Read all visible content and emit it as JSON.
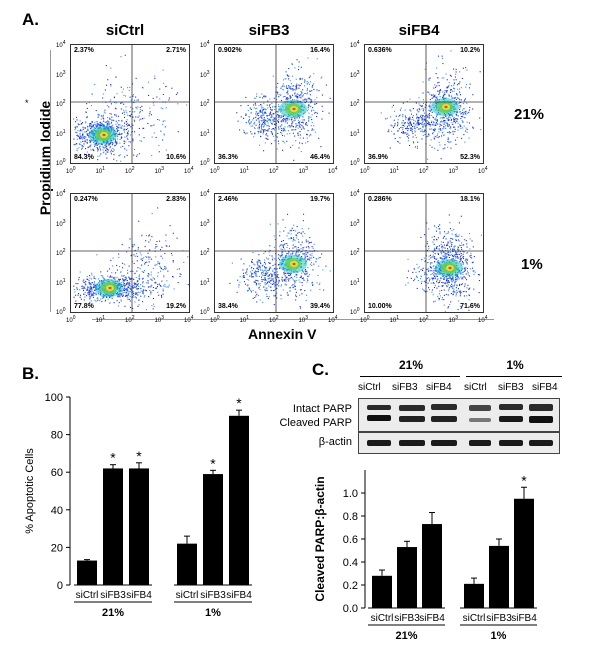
{
  "panel_a": {
    "letter": "A.",
    "conditions": [
      "siCtrl",
      "siFB3",
      "siFB4"
    ],
    "oxygen_rows": [
      "21%",
      "1%"
    ],
    "y_axis_title": "Propidium Iodide",
    "x_axis_title": "Annexin V",
    "tick_labels": [
      "10",
      "10",
      "10",
      "10",
      "10"
    ],
    "tick_exponents": [
      "0",
      "1",
      "2",
      "3",
      "4"
    ],
    "stray_mark": "*",
    "plots": [
      {
        "row": "21%",
        "condition": "siCtrl",
        "ul": "2.37%",
        "ur": "2.71%",
        "ll": "84.3%",
        "lr": "10.6%"
      },
      {
        "row": "21%",
        "condition": "siFB3",
        "ul": "0.902%",
        "ur": "16.4%",
        "ll": "36.3%",
        "lr": "46.4%"
      },
      {
        "row": "21%",
        "condition": "siFB4",
        "ul": "0.636%",
        "ur": "10.2%",
        "ll": "36.9%",
        "lr": "52.3%"
      },
      {
        "row": "1%",
        "condition": "siCtrl",
        "ul": "0.247%",
        "ur": "2.83%",
        "ll": "77.8%",
        "lr": "19.2%"
      },
      {
        "row": "1%",
        "condition": "siFB3",
        "ul": "2.46%",
        "ur": "19.7%",
        "ll": "38.4%",
        "lr": "39.4%"
      },
      {
        "row": "1%",
        "condition": "siFB4",
        "ul": "0.286%",
        "ur": "18.1%",
        "ll": "10.00%",
        "lr": "71.6%"
      }
    ]
  },
  "panel_c_blot": {
    "letter": "C.",
    "groups": [
      "21%",
      "1%"
    ],
    "lanes": [
      "siCtrl",
      "siFB3",
      "siFB4",
      "siCtrl",
      "siFB3",
      "siFB4"
    ],
    "rows": [
      "Intact PARP",
      "Cleaved PARP",
      "β-actin"
    ]
  },
  "chart_data": [
    {
      "panel": "B.",
      "type": "bar",
      "title": "",
      "xlabel": "",
      "ylabel": "% Apoptotic Cells",
      "ylim": [
        0,
        100
      ],
      "yticks": [
        "0",
        "20",
        "40",
        "60",
        "80",
        "100"
      ],
      "categories": [
        "siCtrl",
        "siFB3",
        "siFB4",
        "siCtrl",
        "siFB3",
        "siFB4"
      ],
      "groups": [
        "21%",
        "1%"
      ],
      "values": [
        13,
        62,
        62,
        22,
        59,
        90
      ],
      "errors": [
        0.5,
        2,
        3,
        4,
        2,
        3
      ],
      "significance": [
        "",
        "*",
        "*",
        "",
        "*",
        "*"
      ],
      "colors": {
        "bar": "#000000"
      }
    },
    {
      "panel": "C.",
      "type": "bar",
      "title": "",
      "xlabel": "",
      "ylabel": "Cleaved PARP:β-actin",
      "ylim": [
        0,
        1.2
      ],
      "yticks": [
        "0.0",
        "0.2",
        "0.4",
        "0.6",
        "0.8",
        "1.0"
      ],
      "categories": [
        "siCtrl",
        "siFB3",
        "siFB4",
        "siCtrl",
        "siFB3",
        "siFB4"
      ],
      "groups": [
        "21%",
        "1%"
      ],
      "values": [
        0.28,
        0.53,
        0.73,
        0.21,
        0.54,
        0.95
      ],
      "errors": [
        0.05,
        0.05,
        0.1,
        0.05,
        0.06,
        0.1
      ],
      "significance": [
        "",
        "",
        "",
        "",
        "",
        "*"
      ],
      "colors": {
        "bar": "#000000"
      }
    }
  ]
}
